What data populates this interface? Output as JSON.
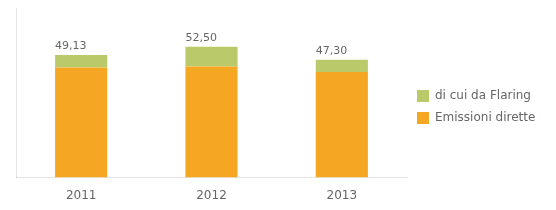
{
  "chart_data": {
    "type": "bar",
    "stacked": true,
    "categories": [
      "2011",
      "2012",
      "2013"
    ],
    "series": [
      {
        "name": "Emissioni dirette di gas serra",
        "color": "#F5A623",
        "values": [
          44.13,
          44.5,
          42.3
        ]
      },
      {
        "name": "di cui da Flaring",
        "color": "#BACA6A",
        "values": [
          5.0,
          8.0,
          5.0
        ]
      }
    ],
    "totals": [
      49.13,
      52.5,
      47.3
    ],
    "total_labels": [
      "49,13",
      "52,50",
      "47,30"
    ],
    "ylim": [
      0,
      68
    ],
    "tick_labels": "x",
    "grid": false,
    "legend": "right"
  }
}
